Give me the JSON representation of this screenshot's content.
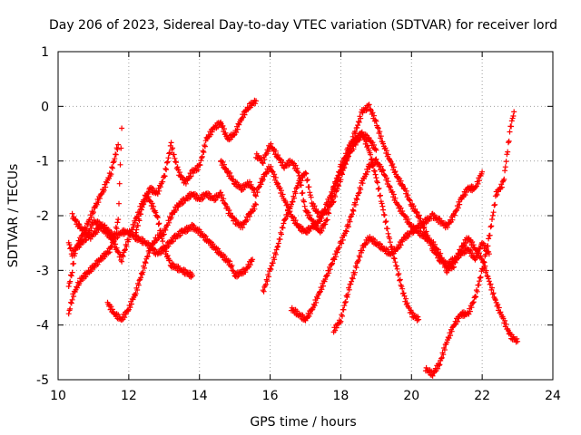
{
  "chart_data": {
    "type": "scatter",
    "title": "Day 206 of 2023, Sidereal Day-to-day VTEC variation (SDTVAR) for receiver lord",
    "xlabel": "GPS time / hours",
    "ylabel": "SDTVAR / TECUs",
    "xlim": [
      10,
      24
    ],
    "ylim": [
      -5,
      1
    ],
    "xticks": [
      10,
      12,
      14,
      16,
      18,
      20,
      22,
      24
    ],
    "yticks": [
      1,
      0,
      -1,
      -2,
      -3,
      -4,
      -5
    ],
    "xtick_labels": [
      "10",
      "12",
      "14",
      "16",
      "18",
      "20",
      "22",
      "24"
    ],
    "ytick_labels": [
      "1",
      "0",
      "-1",
      "-2",
      "-3",
      "-4",
      "-5"
    ],
    "grid": true,
    "marker": "plus",
    "color": "#ff0000",
    "series": [
      {
        "name": "track-1",
        "x": [
          10.3,
          10.4,
          10.5,
          10.8,
          11.0,
          11.3,
          11.6,
          11.8,
          12.0,
          12.2,
          12.5,
          12.8,
          13.0,
          13.3,
          13.5,
          13.8,
          14.0,
          14.3,
          14.6,
          14.9,
          15.0,
          15.3,
          15.5
        ],
        "y": [
          -2.5,
          -2.7,
          -2.6,
          -2.4,
          -2.1,
          -2.2,
          -2.4,
          -2.3,
          -2.3,
          -2.4,
          -2.5,
          -2.7,
          -2.6,
          -2.4,
          -2.3,
          -2.2,
          -2.3,
          -2.5,
          -2.7,
          -2.9,
          -3.1,
          -3.0,
          -2.8
        ]
      },
      {
        "name": "track-2",
        "x": [
          10.3,
          10.4,
          10.5,
          10.8,
          11.0,
          11.3,
          11.5,
          11.7
        ],
        "y": [
          -3.3,
          -3.0,
          -2.6,
          -2.2,
          -1.9,
          -1.5,
          -1.2,
          -0.7
        ]
      },
      {
        "name": "track-3",
        "x": [
          10.3,
          10.4,
          10.6,
          10.9,
          11.2,
          11.5,
          11.7,
          11.8
        ],
        "y": [
          -3.8,
          -3.5,
          -3.2,
          -3.0,
          -2.8,
          -2.6,
          -2.1,
          -0.4
        ]
      },
      {
        "name": "track-4",
        "x": [
          10.4,
          10.6,
          10.9,
          11.2,
          11.5,
          11.8,
          12.0,
          12.3,
          12.5,
          12.8,
          13.0,
          13.2,
          13.5,
          13.8
        ],
        "y": [
          -2.0,
          -2.2,
          -2.4,
          -2.2,
          -2.4,
          -2.8,
          -2.4,
          -1.9,
          -1.6,
          -2.0,
          -2.6,
          -2.9,
          -3.0,
          -3.1
        ]
      },
      {
        "name": "track-5",
        "x": [
          11.4,
          11.6,
          11.8,
          12.0,
          12.2,
          12.4,
          12.6,
          12.8,
          13.0,
          13.2,
          13.4,
          13.6,
          13.8,
          14.0,
          14.2,
          14.4,
          14.6,
          14.8,
          15.0,
          15.2,
          15.4,
          15.6
        ],
        "y": [
          -3.6,
          -3.8,
          -3.9,
          -3.7,
          -3.4,
          -3.0,
          -2.6,
          -2.4,
          -2.3,
          -2.0,
          -1.8,
          -1.7,
          -1.6,
          -1.7,
          -1.6,
          -1.7,
          -1.6,
          -1.9,
          -2.1,
          -2.2,
          -2.0,
          -1.8
        ]
      },
      {
        "name": "track-6",
        "x": [
          12.2,
          12.4,
          12.6,
          12.8,
          13.0,
          13.2,
          13.4,
          13.6,
          13.8,
          14.0,
          14.2,
          14.4,
          14.6,
          14.8,
          15.0,
          15.2,
          15.4,
          15.6
        ],
        "y": [
          -2.3,
          -1.8,
          -1.5,
          -1.6,
          -1.3,
          -0.7,
          -1.2,
          -1.4,
          -1.2,
          -1.1,
          -0.6,
          -0.4,
          -0.3,
          -0.6,
          -0.5,
          -0.2,
          0.0,
          0.1
        ]
      },
      {
        "name": "track-7",
        "x": [
          14.6,
          14.8,
          15.0,
          15.2,
          15.4,
          15.6,
          15.8,
          16.0,
          16.2,
          16.4,
          16.6,
          16.8,
          17.0,
          17.2,
          17.4,
          17.6,
          17.8,
          18.0,
          18.2,
          18.4,
          18.6,
          18.8,
          19.0
        ],
        "y": [
          -1.0,
          -1.2,
          -1.4,
          -1.5,
          -1.4,
          -1.6,
          -1.3,
          -1.1,
          -1.4,
          -1.7,
          -2.0,
          -2.2,
          -2.3,
          -2.2,
          -2.1,
          -1.8,
          -1.5,
          -1.2,
          -0.9,
          -0.7,
          -0.5,
          -0.6,
          -0.8
        ]
      },
      {
        "name": "track-8",
        "x": [
          15.6,
          15.8,
          16.0,
          16.2,
          16.4,
          16.6,
          16.8,
          17.0,
          17.2,
          17.4,
          17.6,
          17.8,
          18.0,
          18.2,
          18.4,
          18.6,
          18.8,
          19.0,
          19.2,
          19.4,
          19.6,
          19.8,
          20.0,
          20.2,
          20.4,
          20.6,
          20.8,
          21.0,
          21.2,
          21.4,
          21.6,
          21.8,
          22.0,
          22.2
        ],
        "y": [
          -0.9,
          -1.0,
          -0.7,
          -0.9,
          -1.1,
          -1.0,
          -1.2,
          -1.9,
          -2.1,
          -2.3,
          -2.1,
          -1.5,
          -1.1,
          -0.8,
          -0.5,
          -0.1,
          0.0,
          -0.3,
          -0.7,
          -1.0,
          -1.3,
          -1.5,
          -1.8,
          -2.0,
          -2.3,
          -2.6,
          -2.8,
          -2.9,
          -2.8,
          -2.7,
          -2.6,
          -2.8,
          -2.5,
          -2.7
        ]
      },
      {
        "name": "track-9",
        "x": [
          15.8,
          16.0,
          16.2,
          16.4,
          16.6,
          16.8,
          17.0,
          17.2,
          17.4,
          17.6,
          17.8,
          18.0,
          18.2,
          18.4,
          18.6,
          18.8,
          19.0,
          19.2,
          19.4,
          19.6,
          19.8,
          20.0,
          20.2
        ],
        "y": [
          -3.4,
          -3.0,
          -2.6,
          -2.1,
          -1.8,
          -1.4,
          -1.2,
          -1.8,
          -2.0,
          -1.9,
          -1.7,
          -1.3,
          -0.9,
          -0.6,
          -0.5,
          -0.8,
          -1.3,
          -1.9,
          -2.5,
          -3.0,
          -3.5,
          -3.8,
          -3.9
        ]
      },
      {
        "name": "track-10",
        "x": [
          16.6,
          16.8,
          17.0,
          17.2,
          17.4,
          17.6,
          17.8,
          18.0,
          18.2,
          18.4,
          18.6,
          18.8,
          19.0,
          19.2,
          19.4,
          19.6,
          19.8,
          20.0,
          20.2,
          20.4,
          20.6,
          20.8,
          21.0,
          21.2,
          21.4,
          21.6,
          21.8,
          22.0,
          22.2,
          22.4,
          22.6,
          22.8,
          23.0
        ],
        "y": [
          -3.7,
          -3.8,
          -3.9,
          -3.7,
          -3.4,
          -3.1,
          -2.8,
          -2.5,
          -2.2,
          -1.8,
          -1.4,
          -1.1,
          -1.0,
          -1.2,
          -1.5,
          -1.8,
          -2.0,
          -2.2,
          -2.3,
          -2.4,
          -2.5,
          -2.7,
          -3.0,
          -2.9,
          -2.6,
          -2.4,
          -2.6,
          -2.8,
          -3.2,
          -3.6,
          -3.9,
          -4.2,
          -4.3
        ]
      },
      {
        "name": "track-11",
        "x": [
          17.8,
          18.0,
          18.2,
          18.4,
          18.6,
          18.8,
          19.0,
          19.2,
          19.4,
          19.6,
          19.8,
          20.0,
          20.2,
          20.4,
          20.6,
          20.8,
          21.0,
          21.2,
          21.4,
          21.6,
          21.8,
          22.0
        ],
        "y": [
          -4.1,
          -3.9,
          -3.4,
          -3.0,
          -2.6,
          -2.4,
          -2.5,
          -2.6,
          -2.7,
          -2.6,
          -2.4,
          -2.3,
          -2.2,
          -2.1,
          -2.0,
          -2.1,
          -2.2,
          -2.0,
          -1.7,
          -1.5,
          -1.5,
          -1.2
        ]
      },
      {
        "name": "track-12",
        "x": [
          20.4,
          20.6,
          20.8,
          21.0,
          21.2,
          21.4,
          21.6,
          21.8,
          22.0,
          22.2,
          22.4,
          22.6,
          22.8,
          22.9
        ],
        "y": [
          -4.8,
          -4.9,
          -4.7,
          -4.3,
          -4.0,
          -3.8,
          -3.8,
          -3.5,
          -3.0,
          -2.4,
          -1.6,
          -1.4,
          -0.4,
          -0.1
        ]
      }
    ]
  }
}
